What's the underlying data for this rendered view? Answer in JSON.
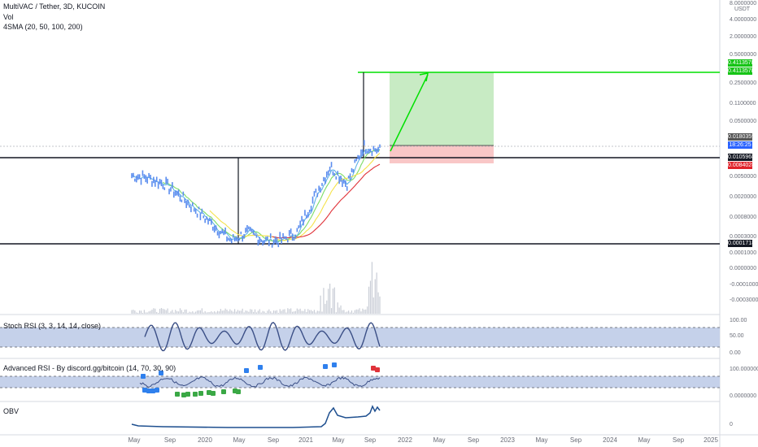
{
  "header": {
    "title": "MultiVAC / Tether, 3D, KUCOIN",
    "vol_label": "Vol",
    "sma_label": "4SMA (20, 50, 100, 200)"
  },
  "panes": {
    "stoch": "Stoch RSI (3, 3, 14, 14, close)",
    "adv_rsi": "Advanced RSI - By discord.gg/bitcoin (14, 70, 30, 90)",
    "obv": "OBV"
  },
  "axis": {
    "currency": "USDT",
    "price_ticks": [
      "8.0000000",
      "4.0000000",
      "2.0000000",
      "0.5000000",
      "0.2500000",
      "0.1100000",
      "0.0500000",
      "0.0050000",
      "0.0020000",
      "0.0008000",
      "0.0003000",
      "0.0001000",
      "0.0000000",
      "-0.0001000",
      "-0.0003000"
    ],
    "stoch_ticks": [
      "100.00",
      "50.00",
      "0.00"
    ],
    "rsi_ticks": [
      "100.0000000",
      "0.0000000"
    ],
    "obv_ticks": [
      "0"
    ]
  },
  "price_tags": {
    "target_top": "0.4113578",
    "target_bottom": "0.4113578",
    "last_price": "0.0180359",
    "countdown": "18:26:25",
    "entry": "0.0105968",
    "stop": "0.0084028",
    "support": "0.0001718"
  },
  "time_axis": [
    "May",
    "Sep",
    "2020",
    "May",
    "Sep",
    "2021",
    "May",
    "Sep",
    "2022",
    "May",
    "Sep",
    "2023",
    "May",
    "Sep",
    "2024",
    "May",
    "Sep",
    "2025"
  ],
  "colors": {
    "candle": "#5b8def",
    "sma20": "#5fb3e6",
    "sma50": "#7ddc67",
    "sma100": "#f5e24a",
    "sma200": "#e0333a",
    "profit_zone": "#c8ebc4",
    "loss_zone": "#f9c7c7",
    "target_line": "#00e000",
    "support_line": "#131722",
    "stoch_band": "#c5d1ea",
    "stoch_line": "#3b4f86",
    "obv_line": "#1e4f8f"
  },
  "chart_data": {
    "type": "line",
    "title": "MultiVAC / Tether, 3D, KUCOIN",
    "scale": "log",
    "x": [
      "2019-05",
      "2019-07",
      "2019-09",
      "2019-11",
      "2020-01",
      "2020-03",
      "2020-05",
      "2020-07",
      "2020-09",
      "2020-11",
      "2021-01",
      "2021-03",
      "2021-05",
      "2021-07",
      "2021-09",
      "2021-10"
    ],
    "series": [
      {
        "name": "MultiVAC / Tether",
        "values": [
          0.0045,
          0.004,
          0.003,
          0.0016,
          0.0008,
          0.0004,
          0.0002,
          0.0003,
          0.0002,
          0.0002,
          0.0003,
          0.0015,
          0.007,
          0.003,
          0.018,
          0.015
        ]
      }
    ],
    "levels": {
      "target": 0.4113578,
      "entry": 0.0105968,
      "stop": 0.0084028,
      "support": 0.0001718,
      "last_price": 0.0180359
    }
  }
}
